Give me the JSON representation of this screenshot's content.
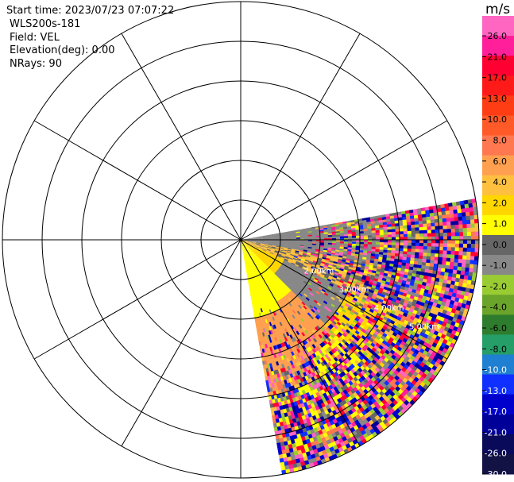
{
  "header": {
    "start_time": "Start time: 2023/07/23 07:07:22",
    "station": "WLS200s-181",
    "field": "Field: VEL",
    "elevation": "Elevation(deg): 0.00",
    "nrays": "NRays: 90"
  },
  "chart_data": {
    "type": "ppi-polar",
    "field": "VEL",
    "units": "m/s",
    "elevation_deg": 0.0,
    "nrays": 90,
    "sector_azimuth_deg": [
      80,
      170
    ],
    "range_ring_labels": [
      "2.00km",
      "3.00km",
      "4.00km",
      "5.00km"
    ],
    "range_rings_count": 6,
    "radial_spokes_count": 12,
    "colorbar": {
      "unit_label": "m/s",
      "tick_labels": [
        "26.0",
        "21.0",
        "17.0",
        "13.0",
        "10.0",
        "8.0",
        "6.0",
        "4.0",
        "2.0",
        "1.0",
        "0.0",
        "-1.0",
        "-2.0",
        "-4.0",
        "-6.0",
        "-8.0",
        "-10.0",
        "-13.0",
        "-17.0",
        "-21.0",
        "-26.0",
        "-30.0"
      ],
      "colors": [
        "#ff66c2",
        "#ff1f9a",
        "#ff0033",
        "#ff1a1a",
        "#ff3d14",
        "#ff5a28",
        "#ff7850",
        "#ffa050",
        "#ffc040",
        "#ffd600",
        "#ffff00",
        "#666666",
        "#888888",
        "#99cc33",
        "#6aa42a",
        "#2e7d2e",
        "#259e68",
        "#1f7fd0",
        "#1030ff",
        "#0000cc",
        "#000099",
        "#0a0a5a",
        "#121245"
      ]
    }
  }
}
